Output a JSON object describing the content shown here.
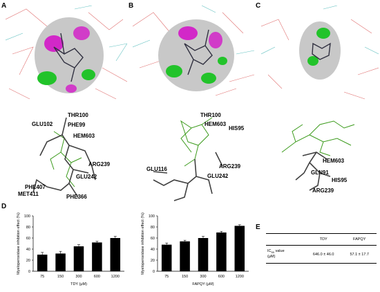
{
  "panels": {
    "a": "A",
    "b": "B",
    "c": "C",
    "d": "D",
    "e": "E"
  },
  "residues": {
    "a": [
      "THR100",
      "GLU102",
      "PHE99",
      "HEM603",
      "ARG239",
      "GLU242",
      "PHE407",
      "MET411",
      "PHE366"
    ],
    "b": [
      "THR100",
      "HEM603",
      "HIS95",
      "ARG239",
      "GLU116",
      "GLU242"
    ],
    "c": [
      "HEM603",
      "GLN91",
      "HIS95",
      "ARG239"
    ]
  },
  "colors": {
    "bar": "#000000",
    "surface_gray": "#c8c8c8",
    "surface_magenta": "#d400c8",
    "surface_green": "#22c32a",
    "ligand_green": "#3a9a1a"
  },
  "chart_data": [
    {
      "type": "bar",
      "categories": [
        "75",
        "150",
        "300",
        "600",
        "1200"
      ],
      "values": [
        30,
        32,
        45,
        52,
        60
      ],
      "errors": [
        4,
        4,
        3,
        2,
        3
      ],
      "xlabel": "TDY (μM)",
      "ylabel": "Myeloperoxidase inhibition effect (%)",
      "ylim": [
        0,
        100
      ],
      "yticks": [
        0,
        20,
        40,
        60,
        80,
        100
      ]
    },
    {
      "type": "bar",
      "categories": [
        "75",
        "150",
        "300",
        "600",
        "1200"
      ],
      "values": [
        48,
        54,
        60,
        70,
        82
      ],
      "errors": [
        3,
        2,
        3,
        2,
        2
      ],
      "xlabel": "FAPQY (μM)",
      "ylabel": "Myeloperoxidase inhibition effect (%)",
      "ylim": [
        0,
        100
      ],
      "yticks": [
        0,
        20,
        40,
        60,
        80,
        100
      ]
    }
  ],
  "table": {
    "headers": [
      "",
      "TDY",
      "FAPQY"
    ],
    "row_label_main": "IC",
    "row_label_sub": "50",
    "row_label_rest": " value",
    "row_label_unit": "(μM)",
    "values": [
      "646.0 ± 46.0",
      "57.1 ± 17.7"
    ]
  }
}
